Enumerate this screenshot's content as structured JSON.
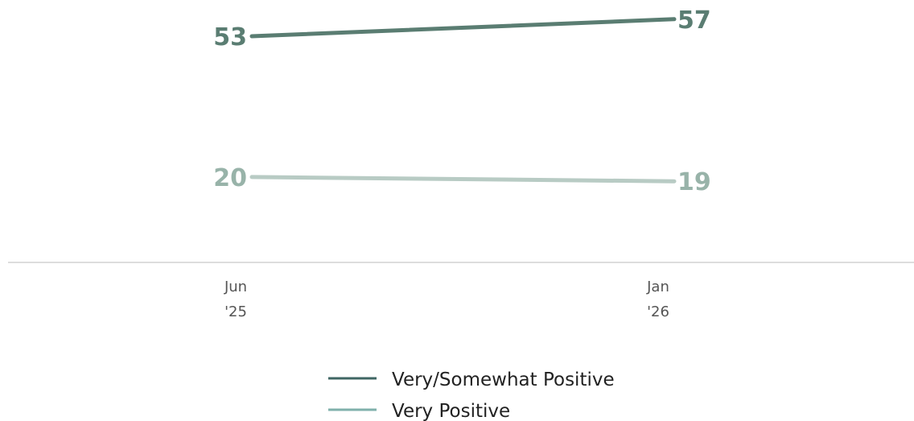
{
  "chart_data": {
    "type": "line",
    "title": "",
    "xlabel": "",
    "ylabel": "",
    "categories": [
      {
        "month": "Jun",
        "year": "'25"
      },
      {
        "month": "Jan",
        "year": "'26"
      }
    ],
    "series": [
      {
        "name": "Very/Somewhat Positive",
        "values": [
          53,
          57
        ],
        "color": "#5a7d72",
        "legend_color": "#3f6663"
      },
      {
        "name": "Very Positive",
        "values": [
          20,
          19
        ],
        "color": "#b8cbc4",
        "label_color": "#98b3a9",
        "legend_color": "#7fb1ab"
      }
    ],
    "grid": false,
    "legend_position": "bottom-center",
    "baseline_color": "#dddddd"
  }
}
